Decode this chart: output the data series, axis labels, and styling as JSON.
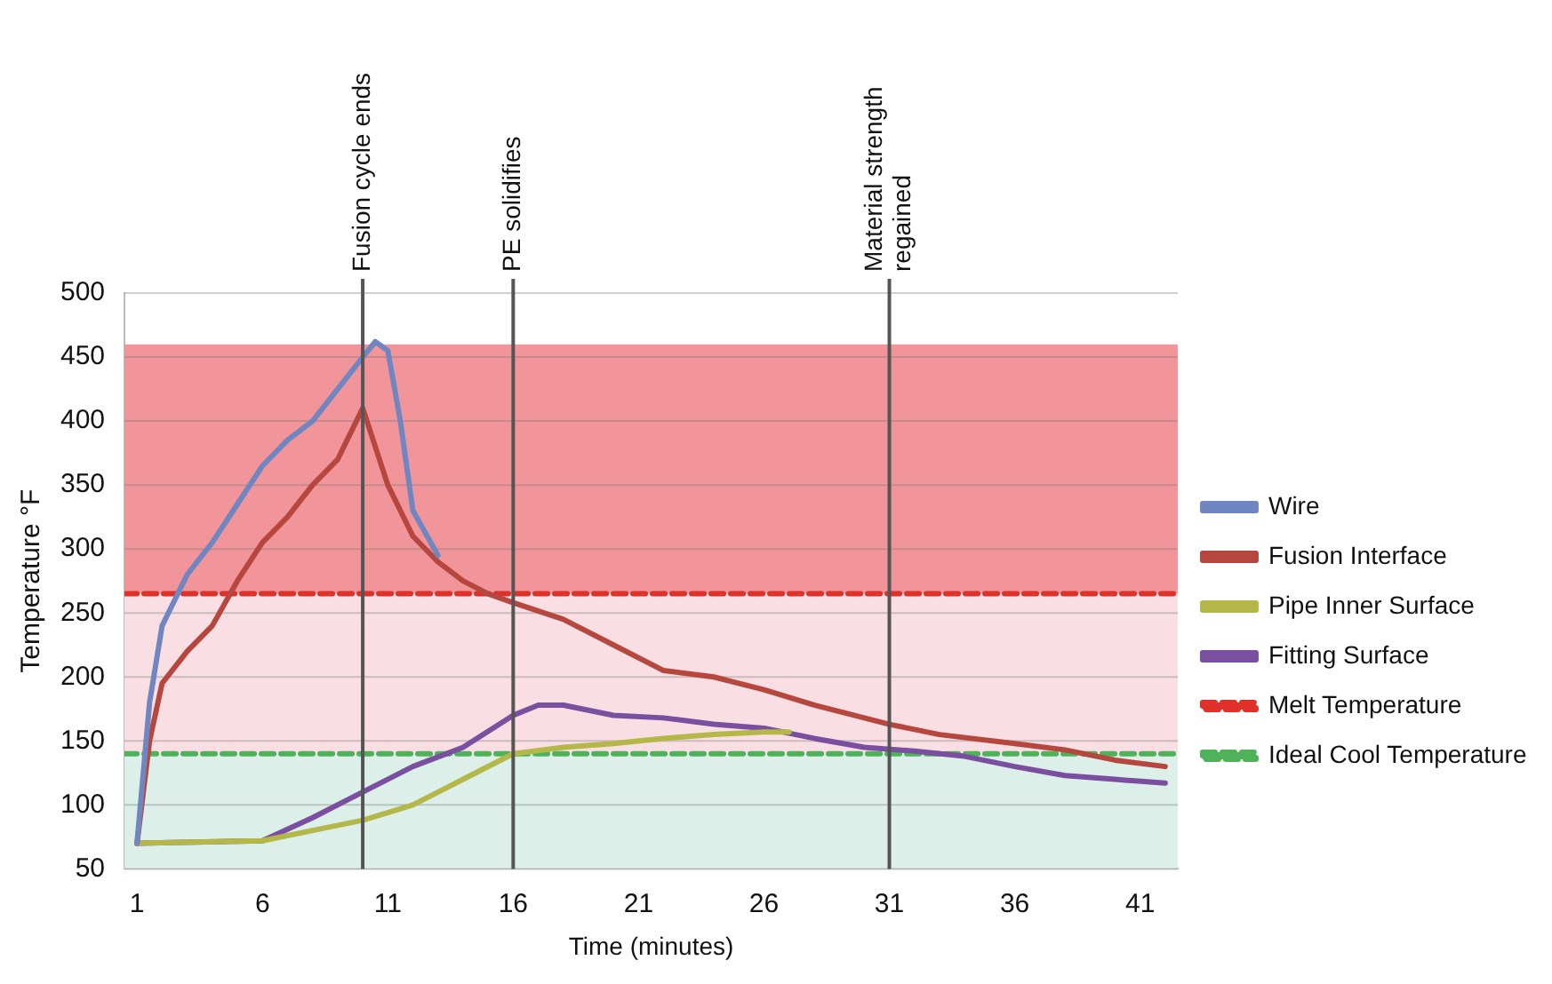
{
  "chart_data": {
    "type": "line",
    "xlabel": "Time (minutes)",
    "ylabel": "Temperature °F",
    "xlim": [
      0.5,
      42.5
    ],
    "xticks": [
      1,
      6,
      11,
      16,
      21,
      26,
      31,
      36,
      41
    ],
    "ylim": [
      50,
      500
    ],
    "yticks": [
      50,
      100,
      150,
      200,
      250,
      300,
      350,
      400,
      450,
      500
    ],
    "grid": "y",
    "legend": "right",
    "marker": "none",
    "series": [
      {
        "name": "Wire",
        "color": "#6f86c0",
        "x": [
          1,
          1.5,
          2,
          3,
          4,
          5,
          6,
          7,
          8,
          9,
          10,
          10.5,
          11,
          11.5,
          12,
          13
        ],
        "values": [
          70,
          180,
          240,
          280,
          305,
          335,
          365,
          385,
          400,
          425,
          450,
          462,
          455,
          400,
          330,
          295
        ]
      },
      {
        "name": "Fusion Interface",
        "color": "#b5473f",
        "x": [
          1,
          1.5,
          2,
          3,
          4,
          5,
          6,
          7,
          8,
          9,
          10,
          10.5,
          11,
          12,
          13,
          14,
          15,
          16,
          18,
          20,
          22,
          24,
          26,
          28,
          30,
          31,
          33,
          36,
          38,
          40,
          42
        ],
        "values": [
          70,
          150,
          195,
          220,
          240,
          275,
          305,
          325,
          350,
          370,
          410,
          380,
          350,
          310,
          290,
          275,
          265,
          258,
          245,
          225,
          205,
          200,
          190,
          178,
          168,
          163,
          155,
          148,
          143,
          135,
          130
        ]
      },
      {
        "name": "Pipe Inner Surface",
        "color": "#b4b848",
        "x": [
          1,
          6,
          8,
          10,
          12,
          14,
          16,
          18,
          20,
          22,
          24,
          26,
          27
        ],
        "values": [
          70,
          72,
          80,
          88,
          100,
          120,
          140,
          145,
          148,
          152,
          155,
          157,
          157
        ]
      },
      {
        "name": "Fitting Surface",
        "color": "#7b4fa0",
        "x": [
          1,
          6,
          8,
          10,
          12,
          14,
          16,
          17,
          18,
          20,
          22,
          24,
          26,
          28,
          30,
          32,
          34,
          36,
          38,
          40,
          42
        ],
        "values": [
          70,
          72,
          90,
          110,
          130,
          145,
          170,
          178,
          178,
          170,
          168,
          163,
          160,
          152,
          145,
          142,
          138,
          130,
          123,
          120,
          117
        ]
      },
      {
        "name": "Melt Temperature",
        "color": "#e0302a",
        "line_style": "dashed",
        "x": [
          0.5,
          42.5
        ],
        "values": [
          265,
          265
        ]
      },
      {
        "name": "Ideal Cool Temperature",
        "color": "#4fb25a",
        "line_style": "dashed",
        "x": [
          0.5,
          42.5
        ],
        "values": [
          140,
          140
        ]
      }
    ],
    "bands": [
      {
        "axis": "y",
        "from": 265,
        "to": 460,
        "color": "#f2959a"
      },
      {
        "axis": "y",
        "from": 140,
        "to": 265,
        "color": "#f9dfe3"
      },
      {
        "axis": "y",
        "from": 50,
        "to": 140,
        "color": "#dcefe9"
      }
    ],
    "ref_lines": [
      {
        "axis": "x",
        "value": 10,
        "label": "Fusion cycle ends",
        "color": "#555555"
      },
      {
        "axis": "x",
        "value": 16,
        "label": "PE solidifies",
        "color": "#555555"
      },
      {
        "axis": "x",
        "value": 31,
        "label": "Material strength regained",
        "color": "#555555"
      }
    ]
  }
}
